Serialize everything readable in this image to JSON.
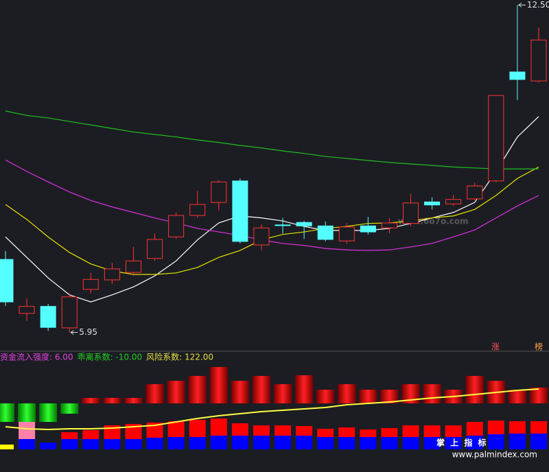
{
  "chart_data": [
    {
      "type": "candlestick",
      "ylim": [
        5.6,
        12.6
      ],
      "up_color": "#ff3232",
      "down_color": "#54ffff",
      "open": [
        7.41,
        6.33,
        6.47,
        6.04,
        6.81,
        7.0,
        7.15,
        7.43,
        7.86,
        8.29,
        8.55,
        8.98,
        7.7,
        8.1,
        8.15,
        8.08,
        7.78,
        8.08,
        8.04,
        8.13,
        8.56,
        8.52,
        8.62,
        8.98,
        11.16,
        10.98
      ],
      "high": [
        7.58,
        6.63,
        6.52,
        6.73,
        7.14,
        7.34,
        7.66,
        7.93,
        8.35,
        8.78,
        9.0,
        9.03,
        8.11,
        8.24,
        8.18,
        8.17,
        8.14,
        8.26,
        8.24,
        8.72,
        8.65,
        8.7,
        8.95,
        10.69,
        12.5,
        12.05
      ],
      "low": [
        6.48,
        6.18,
        5.98,
        5.95,
        6.73,
        6.92,
        7.08,
        7.38,
        7.82,
        8.24,
        8.39,
        7.73,
        7.59,
        7.93,
        7.82,
        7.77,
        7.73,
        7.91,
        7.93,
        8.07,
        8.41,
        8.48,
        8.59,
        8.95,
        10.6,
        10.95
      ],
      "close": [
        6.56,
        6.47,
        6.05,
        6.66,
        7.01,
        7.22,
        7.38,
        7.81,
        8.29,
        8.51,
        8.96,
        7.77,
        8.04,
        8.09,
        8.08,
        7.81,
        8.06,
        7.96,
        8.14,
        8.54,
        8.5,
        8.61,
        8.88,
        10.69,
        11.01,
        11.8
      ],
      "lines": [
        {
          "color": "#ffffff",
          "values": [
            7.86,
            7.45,
            7.04,
            6.7,
            6.56,
            6.7,
            6.86,
            7.08,
            7.38,
            7.8,
            8.14,
            8.28,
            8.24,
            8.18,
            8.07,
            7.99,
            7.99,
            7.99,
            8.03,
            8.13,
            8.24,
            8.35,
            8.55,
            9.17,
            9.86,
            10.27
          ]
        },
        {
          "color": "#e6e600",
          "values": [
            8.51,
            8.21,
            7.86,
            7.55,
            7.32,
            7.18,
            7.11,
            7.11,
            7.14,
            7.25,
            7.45,
            7.59,
            7.8,
            7.91,
            7.96,
            8.03,
            8.07,
            8.13,
            8.14,
            8.18,
            8.24,
            8.28,
            8.41,
            8.69,
            9.03,
            9.26
          ]
        },
        {
          "color": "#e030e0",
          "values": [
            9.4,
            9.17,
            8.96,
            8.76,
            8.59,
            8.46,
            8.35,
            8.24,
            8.14,
            8.03,
            7.96,
            7.89,
            7.8,
            7.73,
            7.69,
            7.63,
            7.6,
            7.59,
            7.6,
            7.66,
            7.73,
            7.86,
            8.0,
            8.24,
            8.48,
            8.69
          ]
        },
        {
          "color": "#20c020",
          "values": [
            10.38,
            10.29,
            10.24,
            10.17,
            10.1,
            10.03,
            9.96,
            9.91,
            9.86,
            9.8,
            9.75,
            9.69,
            9.64,
            9.58,
            9.53,
            9.47,
            9.43,
            9.39,
            9.35,
            9.32,
            9.29,
            9.26,
            9.24,
            9.22,
            9.22,
            9.22
          ]
        }
      ],
      "annotations": [
        {
          "value": 12.5,
          "label": "12.50"
        },
        {
          "value": 5.95,
          "label": "5.95"
        }
      ]
    },
    {
      "type": "indicator",
      "ylim": [
        0,
        140
      ],
      "header": [
        {
          "text": "资金流入强度: 6.00",
          "color": "#e040e0"
        },
        {
          "text": "乖离系数: -10.00",
          "color": "#20d020"
        },
        {
          "text": "风险系数: 122.00",
          "color": "#e0e040"
        }
      ],
      "floating": [
        {
          "color": "#e00000",
          "low": [
            null,
            null,
            null,
            null,
            67,
            67,
            67,
            67,
            67,
            67,
            67,
            67,
            67,
            67,
            67,
            67,
            67,
            67,
            67,
            67,
            67,
            67,
            67,
            67,
            67,
            67
          ],
          "high": [
            null,
            null,
            null,
            null,
            75,
            75,
            75,
            95,
            100,
            107,
            120,
            100,
            107,
            95,
            108,
            87,
            95,
            87,
            87,
            95,
            95,
            87,
            107,
            100,
            87,
            90
          ]
        },
        {
          "color": "#00d000",
          "low": [
            40,
            40,
            40,
            52,
            null,
            null,
            null,
            null,
            null,
            null,
            null,
            null,
            null,
            null,
            null,
            null,
            null,
            null,
            null,
            null,
            null,
            null,
            null,
            null,
            null,
            null
          ],
          "high": [
            67,
            67,
            67,
            67,
            null,
            null,
            null,
            null,
            null,
            null,
            null,
            null,
            null,
            null,
            null,
            null,
            null,
            null,
            null,
            null,
            null,
            null,
            null,
            null,
            null,
            null
          ]
        }
      ],
      "base_bars": [
        {
          "color": "#ff80a8",
          "values": [
            null,
            50,
            null,
            null,
            null,
            null,
            null,
            null,
            null,
            null,
            null,
            null,
            null,
            null,
            null,
            null,
            null,
            null,
            null,
            null,
            null,
            null,
            null,
            null,
            null,
            null
          ]
        },
        {
          "color": "#ffff00",
          "values": [
            7,
            null,
            null,
            null,
            null,
            null,
            null,
            null,
            null,
            null,
            null,
            null,
            null,
            null,
            null,
            null,
            null,
            null,
            null,
            null,
            null,
            null,
            null,
            null,
            null,
            null
          ]
        }
      ],
      "stacked": [
        {
          "color": "#0000ff",
          "values": [
            null,
            15,
            10,
            15,
            15,
            15,
            15,
            17,
            18,
            18,
            20,
            20,
            20,
            20,
            20,
            18,
            18,
            18,
            18,
            18,
            18,
            18,
            20,
            22,
            23,
            23
          ]
        },
        {
          "color": "#ff0000",
          "values": [
            null,
            null,
            null,
            10,
            13,
            20,
            22,
            22,
            23,
            25,
            25,
            18,
            15,
            15,
            14,
            12,
            14,
            11,
            13,
            17,
            17,
            17,
            20,
            20,
            18,
            18
          ]
        }
      ],
      "line": {
        "color": "#ffff40",
        "values": [
          33,
          30,
          29,
          30,
          30,
          31,
          33,
          35,
          40,
          45,
          49,
          52,
          55,
          57,
          59,
          61,
          65,
          67,
          69,
          72,
          75,
          77,
          80,
          83,
          86,
          88
        ]
      }
    }
  ],
  "badges": [
    "涨",
    "榜"
  ],
  "watermarks": [
    "www.6o7o.com",
    "掌 上 指 标",
    "www.palmindex.com"
  ]
}
